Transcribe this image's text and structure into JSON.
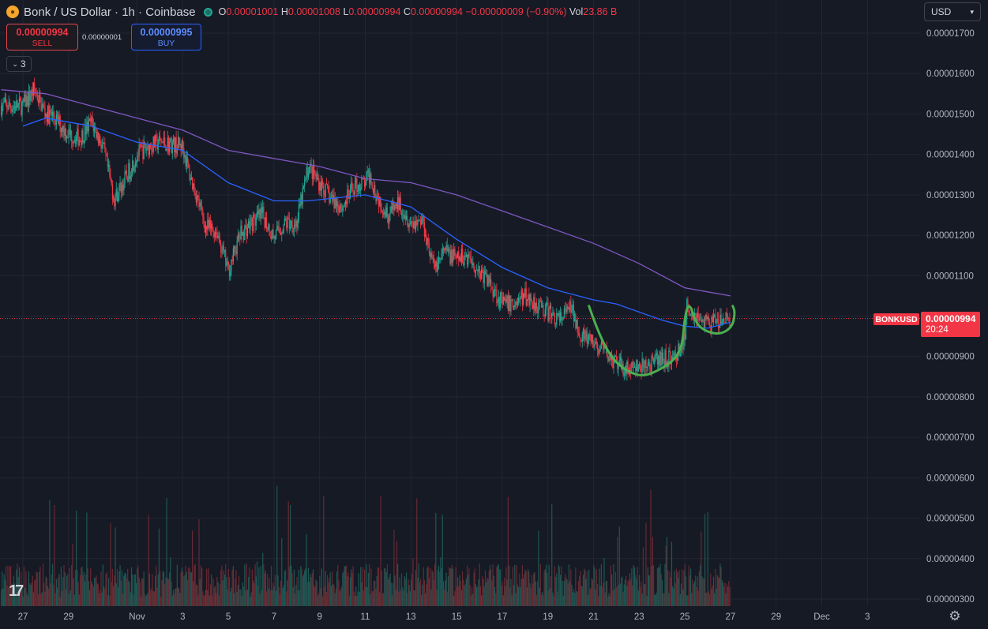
{
  "header": {
    "title": "Bonk / US Dollar · 1h · Coinbase",
    "open_label": "O",
    "open": "0.00001001",
    "high_label": "H",
    "high": "0.00001008",
    "low_label": "L",
    "low": "0.00000994",
    "close_label": "C",
    "close": "0.00000994",
    "change": "−0.00000009 (−0.90%)",
    "vol_label": "Vol",
    "vol": "23.86 B"
  },
  "trade": {
    "sell_price": "0.00000994",
    "sell_label": "SELL",
    "spread": "0.00000001",
    "buy_price": "0.00000995",
    "buy_label": "BUY"
  },
  "indicators_collapsed_count": "3",
  "currency_select": "USD",
  "symbol_tag": "BONKUSD",
  "price_tag": {
    "price": "0.00000994",
    "countdown": "20:24"
  },
  "colors": {
    "up": "#22ab94",
    "down": "#f23645",
    "ma_fast": "#2962ff",
    "ma_slow": "#7e57c2",
    "drawing": "#4caf50",
    "bg": "#161a25"
  },
  "chart_data": {
    "type": "candlestick",
    "interval": "1h",
    "y_axis": {
      "ticks": [
        1.7e-05,
        1.6e-05,
        1.5e-05,
        1.4e-05,
        1.3e-05,
        1.2e-05,
        1.1e-05,
        1e-05,
        9e-06,
        8e-06,
        7e-06,
        6e-06,
        5e-06,
        4e-06,
        3e-06
      ],
      "tick_labels": [
        "0.00001700",
        "0.00001600",
        "0.00001500",
        "0.00001400",
        "0.00001300",
        "0.00001200",
        "0.00001100",
        "0.00001000",
        "0.00000900",
        "0.00000800",
        "0.00000700",
        "0.00000600",
        "0.00000500",
        "0.00000400",
        "0.00000300"
      ],
      "position": "right"
    },
    "x_axis": {
      "tick_labels": [
        "27",
        "29",
        "Nov",
        "3",
        "5",
        "7",
        "9",
        "11",
        "13",
        "15",
        "17",
        "19",
        "21",
        "23",
        "25",
        "27",
        "29",
        "Dec",
        "3"
      ],
      "tick_days": [
        0,
        2,
        5,
        7,
        9,
        11,
        13,
        15,
        17,
        19,
        21,
        23,
        25,
        27,
        29,
        31,
        33,
        35,
        37
      ],
      "range_days": [
        -0.95,
        38.6
      ]
    },
    "price_path": [
      [
        0,
        1.52e-05
      ],
      [
        0.5,
        1.56e-05
      ],
      [
        1,
        1.5e-05
      ],
      [
        1.3,
        1.495e-05
      ],
      [
        2,
        1.45e-05
      ],
      [
        2.5,
        1.44e-05
      ],
      [
        3,
        1.48e-05
      ],
      [
        3.5,
        1.42e-05
      ],
      [
        4,
        1.29e-05
      ],
      [
        4.5,
        1.34e-05
      ],
      [
        5,
        1.4e-05
      ],
      [
        5.5,
        1.42e-05
      ],
      [
        6,
        1.43e-05
      ],
      [
        7,
        1.42e-05
      ],
      [
        7.3,
        1.35e-05
      ],
      [
        7.6,
        1.3e-05
      ],
      [
        8,
        1.22e-05
      ],
      [
        8.5,
        1.21e-05
      ],
      [
        9,
        1.11e-05
      ],
      [
        9.5,
        1.2e-05
      ],
      [
        10,
        1.23e-05
      ],
      [
        10.5,
        1.25e-05
      ],
      [
        11,
        1.195e-05
      ],
      [
        11.5,
        1.23e-05
      ],
      [
        12,
        1.23e-05
      ],
      [
        12.5,
        1.37e-05
      ],
      [
        13,
        1.33e-05
      ],
      [
        13.5,
        1.29e-05
      ],
      [
        14,
        1.27e-05
      ],
      [
        14.5,
        1.32e-05
      ],
      [
        15,
        1.33e-05
      ],
      [
        15.2,
        1.35e-05
      ],
      [
        15.5,
        1.3e-05
      ],
      [
        16,
        1.25e-05
      ],
      [
        16.5,
        1.28e-05
      ],
      [
        17,
        1.23e-05
      ],
      [
        17.5,
        1.24e-05
      ],
      [
        18,
        1.12e-05
      ],
      [
        18.5,
        1.16e-05
      ],
      [
        19,
        1.14e-05
      ],
      [
        19.5,
        1.15e-05
      ],
      [
        20,
        1.11e-05
      ],
      [
        20.5,
        1.08e-05
      ],
      [
        21,
        1.03e-05
      ],
      [
        21.5,
        1.03e-05
      ],
      [
        22,
        1.05e-05
      ],
      [
        22.5,
        1.03e-05
      ],
      [
        23,
        1.01e-05
      ],
      [
        23.5,
        9.9e-06
      ],
      [
        24,
        1.02e-05
      ],
      [
        24.5,
        9.5e-06
      ],
      [
        25,
        9.3e-06
      ],
      [
        25.5,
        9.1e-06
      ],
      [
        26,
        8.8e-06
      ],
      [
        26.5,
        8.7e-06
      ],
      [
        27,
        8.7e-06
      ],
      [
        27.5,
        8.8e-06
      ],
      [
        28,
        8.95e-06
      ],
      [
        28.5,
        8.95e-06
      ],
      [
        29,
        9.4e-06
      ],
      [
        29.1,
        1.03e-05
      ],
      [
        29.3,
        1.01e-05
      ],
      [
        29.7,
        9.95e-06
      ],
      [
        30,
        9.8e-06
      ],
      [
        30.5,
        9.85e-06
      ],
      [
        31,
        9.94e-06
      ]
    ],
    "ma_fast": {
      "color": "#2962ff",
      "values": [
        [
          0,
          1.47e-05
        ],
        [
          1,
          1.49e-05
        ],
        [
          3,
          1.47e-05
        ],
        [
          5,
          1.43e-05
        ],
        [
          7,
          1.41e-05
        ],
        [
          9,
          1.33e-05
        ],
        [
          11,
          1.285e-05
        ],
        [
          12.5,
          1.285e-05
        ],
        [
          15,
          1.3e-05
        ],
        [
          17,
          1.27e-05
        ],
        [
          19,
          1.19e-05
        ],
        [
          21,
          1.12e-05
        ],
        [
          23,
          1.07e-05
        ],
        [
          25,
          1.04e-05
        ],
        [
          26,
          1.03e-05
        ],
        [
          27,
          1.01e-05
        ],
        [
          28,
          9.9e-06
        ],
        [
          29,
          9.75e-06
        ],
        [
          30,
          9.7e-06
        ],
        [
          31,
          9.85e-06
        ]
      ]
    },
    "ma_slow": {
      "color": "#7e57c2",
      "values": [
        [
          -0.95,
          1.56e-05
        ],
        [
          1,
          1.55e-05
        ],
        [
          3,
          1.52e-05
        ],
        [
          5,
          1.49e-05
        ],
        [
          7,
          1.46e-05
        ],
        [
          9,
          1.41e-05
        ],
        [
          11,
          1.39e-05
        ],
        [
          13,
          1.37e-05
        ],
        [
          15,
          1.34e-05
        ],
        [
          17,
          1.33e-05
        ],
        [
          19,
          1.3e-05
        ],
        [
          21,
          1.26e-05
        ],
        [
          23,
          1.22e-05
        ],
        [
          25,
          1.18e-05
        ],
        [
          27,
          1.13e-05
        ],
        [
          29,
          1.07e-05
        ],
        [
          30,
          1.06e-05
        ],
        [
          31,
          1.05e-05
        ]
      ]
    },
    "drawing_cup": {
      "color": "#4caf50",
      "points": [
        [
          24.8,
          1.025e-05
        ],
        [
          25.2,
          9.6e-06
        ],
        [
          25.8,
          8.95e-06
        ],
        [
          26.5,
          8.62e-06
        ],
        [
          27.2,
          8.5e-06
        ],
        [
          28,
          8.7e-06
        ],
        [
          28.6,
          8.95e-06
        ],
        [
          28.9,
          9.3e-06
        ],
        [
          29.0,
          1e-05
        ],
        [
          29.2,
          1.035e-05
        ],
        [
          29.5,
          9.8e-06
        ],
        [
          30,
          9.6e-06
        ],
        [
          30.6,
          9.55e-06
        ],
        [
          31.1,
          9.75e-06
        ],
        [
          31.2,
          1.01e-05
        ],
        [
          31.1,
          1.025e-05
        ]
      ]
    },
    "last_price": 9.94e-06,
    "volume": {
      "note": "hourly volume histogram along bottom"
    }
  }
}
